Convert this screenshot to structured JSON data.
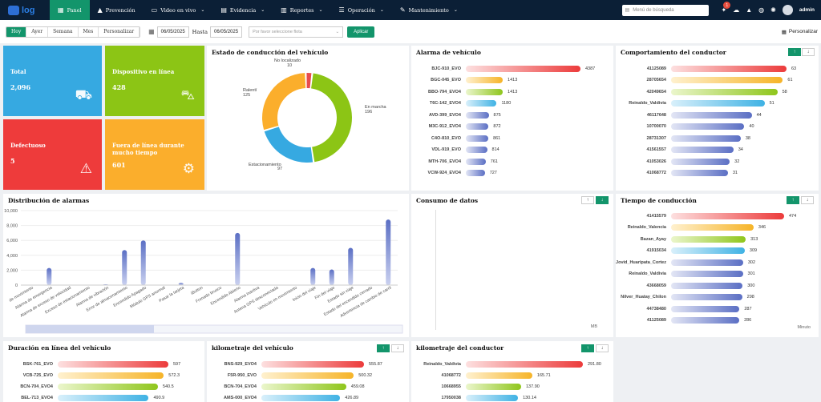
{
  "nav": {
    "logo": "log",
    "items": [
      {
        "label": "Panel",
        "icon": "▦",
        "active": true,
        "chev": false
      },
      {
        "label": "Prevención",
        "icon": "▲",
        "chev": false
      },
      {
        "label": "Video en vivo",
        "icon": "▭",
        "chev": true
      },
      {
        "label": "Evidencia",
        "icon": "▤",
        "chev": true
      },
      {
        "label": "Reportes",
        "icon": "▥",
        "chev": true
      },
      {
        "label": "Operación",
        "icon": "☰",
        "chev": true
      },
      {
        "label": "Mantenimiento",
        "icon": "✎",
        "chev": true
      }
    ],
    "search_placeholder": "Menú de búsqueda",
    "notif_count": "1",
    "user": "admin"
  },
  "toolbar": {
    "ranges": [
      "Hoy",
      "Ayer",
      "Semana",
      "Mes",
      "Personalizar"
    ],
    "date_from": "06/05/2025",
    "to_label": "Hasta",
    "date_to": "06/05/2025",
    "fleet_placeholder": "Por favor seleccione flota",
    "apply": "Aplicar",
    "customize": "Personalizar"
  },
  "tiles": [
    {
      "title": "Total",
      "value": "2,096",
      "color": "#36a9e1",
      "icon": "vehicles-icon"
    },
    {
      "title": "Dispositivo en línea",
      "value": "428",
      "color": "#8cc515",
      "icon": "car-online-icon"
    },
    {
      "title": "Defectuoso",
      "value": "5",
      "color": "#ee3b3b",
      "icon": "car-fault-icon"
    },
    {
      "title": "Fuera de línea durante mucho tiempo",
      "value": "601",
      "color": "#fbae2c",
      "icon": "car-offline-icon"
    }
  ],
  "status": {
    "title": "Estado de conducción del vehículo",
    "labels": [
      {
        "name": "No localizado",
        "value": "10",
        "color": "#e84c4c"
      },
      {
        "name": "En marcha",
        "value": "196",
        "color": "#8cc515"
      },
      {
        "name": "Estacionamiento",
        "value": "97",
        "color": "#36a9e1"
      },
      {
        "name": "Ralentí",
        "value": "125",
        "color": "#fbae2c"
      }
    ]
  },
  "alarm_vehicle": {
    "title": "Alarma de vehículo",
    "max": 4387,
    "items": [
      {
        "name": "BJC-910_EVO",
        "value": 4387
      },
      {
        "name": "BGC-045_EVO",
        "value": 1413
      },
      {
        "name": "BBO-794_EVO4",
        "value": 1413
      },
      {
        "name": "T6C-142_EVO4",
        "value": 1180
      },
      {
        "name": "AVD-399_EVO4",
        "value": 875
      },
      {
        "name": "M3C-912_EVO4",
        "value": 872
      },
      {
        "name": "C4O-810_EVO",
        "value": 861
      },
      {
        "name": "VDL-919_EVO",
        "value": 814
      },
      {
        "name": "MTH-706_EVO4",
        "value": 761
      },
      {
        "name": "VCW-924_EVO4",
        "value": 727
      }
    ]
  },
  "driver_behavior": {
    "title": "Comportamiento del conductor",
    "max": 63,
    "items": [
      {
        "name": "41125089",
        "value": 63
      },
      {
        "name": "28705654",
        "value": 61
      },
      {
        "name": "42049654",
        "value": 58
      },
      {
        "name": "Reinaldo_Valdivia",
        "value": 51
      },
      {
        "name": "46117648",
        "value": 44
      },
      {
        "name": "10700070",
        "value": 40
      },
      {
        "name": "28731307",
        "value": 38
      },
      {
        "name": "41561557",
        "value": 34
      },
      {
        "name": "41053026",
        "value": 32
      },
      {
        "name": "41068772",
        "value": 31
      }
    ]
  },
  "chart_data": [
    {
      "type": "bar",
      "title": "Distribución de alarmas",
      "ylim": [
        0,
        10000
      ],
      "yticks": [
        "0",
        "2,000",
        "4,000",
        "6,000",
        "8,000",
        "10,000"
      ],
      "categories": [
        "de movimiento",
        "Alarma de emergencia",
        "Alarma de exceso de velocidad",
        "Exceso de estacionamiento",
        "Alarma de vibración",
        "Error de almacenamiento",
        "Encendido Apagado",
        "Módulo GPS anormal",
        "Pasar la tarjeta",
        "iButton",
        "Frenado brusco",
        "Encendido Abierto",
        "Alarma inactiva",
        "Antena GPS desconectada",
        "Vehículo en movimiento",
        "Inicio del viaje",
        "Fin del viaje",
        "Estado sin viaje",
        "Estado del encendido cerrado",
        "Advertencia de cambio de carril"
      ],
      "values": [
        0,
        2300,
        0,
        0,
        100,
        4700,
        6000,
        0,
        300,
        0,
        0,
        7000,
        0,
        0,
        0,
        2300,
        2100,
        5000,
        0,
        8800
      ]
    }
  ],
  "data_usage": {
    "title": "Consumo de datos",
    "unit": "MB"
  },
  "drive_time": {
    "title": "Tiempo de conducción",
    "unit": "Minuto",
    "max": 474,
    "items": [
      {
        "name": "41415579",
        "value": 474
      },
      {
        "name": "Reinaldo_Valencia",
        "value": 346
      },
      {
        "name": "Bazan_Ayay",
        "value": 313
      },
      {
        "name": "41915034",
        "value": 309
      },
      {
        "name": "Jovid_Huaripata_Cortez",
        "value": 302
      },
      {
        "name": "Reinaldo_Valdivia",
        "value": 301
      },
      {
        "name": "43668059",
        "value": 300
      },
      {
        "name": "Nilver_Huatay_Chilon",
        "value": 298
      },
      {
        "name": "44738480",
        "value": 287
      },
      {
        "name": "41125089",
        "value": 286
      }
    ]
  },
  "online_duration": {
    "title": "Duración en línea del vehículo",
    "max": 597,
    "items": [
      {
        "name": "BSK-761_EVO",
        "value": "597"
      },
      {
        "name": "VCB-725_EVO",
        "value": "572.3"
      },
      {
        "name": "BCN-704_EVO4",
        "value": "540.5"
      },
      {
        "name": "BEL-713_EVO4",
        "value": "490.9"
      }
    ]
  },
  "mileage_vehicle": {
    "title": "kilometraje del vehículo",
    "max": 555.87,
    "items": [
      {
        "name": "BNS-929_EVO4",
        "value": "555.87"
      },
      {
        "name": "F5R-950_EVO",
        "value": "500.32"
      },
      {
        "name": "BCN-704_EVO4",
        "value": "459.08"
      },
      {
        "name": "AMS-000_EVO4",
        "value": "426.89"
      }
    ]
  },
  "mileage_driver": {
    "title": "kilometraje del conductor",
    "max": 291.8,
    "items": [
      {
        "name": "Reinaldo_Valdivia",
        "value": "291.80"
      },
      {
        "name": "41068772",
        "value": "165.71"
      },
      {
        "name": "10668955",
        "value": "137.90"
      },
      {
        "name": "17950038",
        "value": "130.14"
      }
    ]
  },
  "colors": {
    "accent": "#13956b",
    "nav": "#0b1f36"
  }
}
